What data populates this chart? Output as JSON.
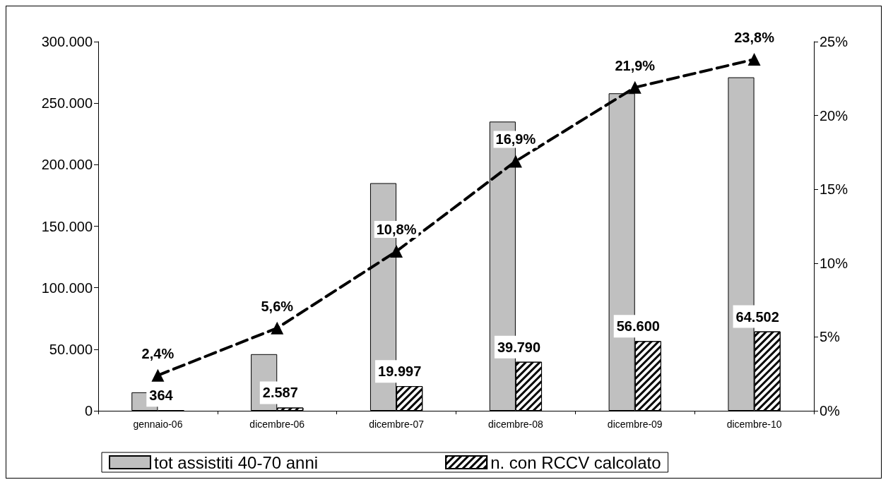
{
  "chart_data": {
    "type": "bar",
    "categories": [
      "gennaio-06",
      "dicembre-06",
      "dicembre-07",
      "dicembre-08",
      "dicembre-09",
      "dicembre-10"
    ],
    "series": [
      {
        "name": "tot assistiti 40-70 anni",
        "color": "#c0c0c0",
        "values": [
          15000,
          46000,
          185000,
          235000,
          258000,
          271000
        ]
      },
      {
        "name": "n. con RCCV calcolato",
        "color": "#ffffff",
        "values": [
          364,
          2587,
          19997,
          39790,
          56600,
          64502
        ],
        "value_labels": [
          "364",
          "2.587",
          "19.997",
          "39.790",
          "56.600",
          "64.502"
        ]
      },
      {
        "type": "line",
        "axis": "y2",
        "color": "#000000",
        "values": [
          2.4,
          5.6,
          10.8,
          16.9,
          21.9,
          23.8
        ],
        "value_labels": [
          "2,4%",
          "5,6%",
          "10,8%",
          "16,9%",
          "21,9%",
          "23,8%"
        ]
      }
    ],
    "ylim": [
      0,
      300000
    ],
    "yticks": [
      {
        "value": 0,
        "label": "0"
      },
      {
        "value": 50000,
        "label": "50.000"
      },
      {
        "value": 100000,
        "label": "100.000"
      },
      {
        "value": 150000,
        "label": "150.000"
      },
      {
        "value": 200000,
        "label": "200.000"
      },
      {
        "value": 250000,
        "label": "250.000"
      },
      {
        "value": 300000,
        "label": "300.000"
      }
    ],
    "y2lim": [
      0,
      25
    ],
    "y2ticks": [
      {
        "value": 0,
        "label": "0%"
      },
      {
        "value": 5,
        "label": "5%"
      },
      {
        "value": 10,
        "label": "10%"
      },
      {
        "value": 15,
        "label": "15%"
      },
      {
        "value": 20,
        "label": "20%"
      },
      {
        "value": 25,
        "label": "25%"
      }
    ],
    "marker": "triangle",
    "line_style": "dashed",
    "grid": false,
    "legend": "bottom"
  }
}
